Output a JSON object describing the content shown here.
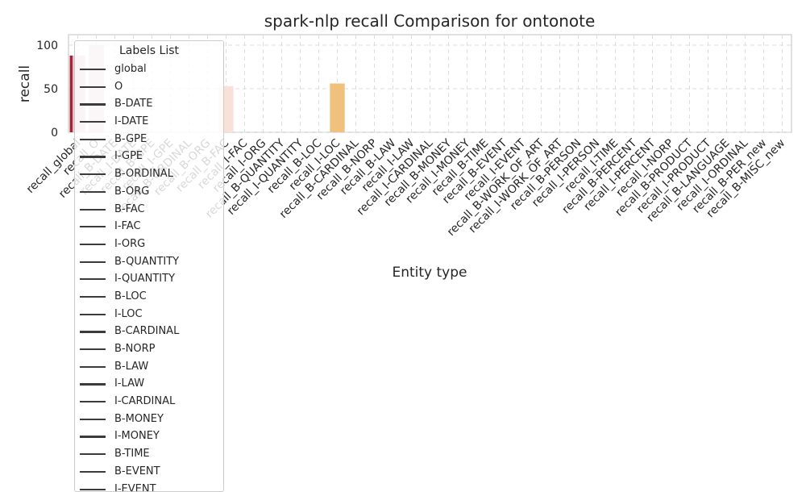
{
  "chart_data": {
    "type": "bar",
    "title": "spark-nlp recall Comparison for ontonote",
    "xlabel": "Entity type",
    "ylabel": "recall",
    "ylim": [
      0,
      112
    ],
    "yticks": [
      0,
      50,
      100
    ],
    "grid": true,
    "categories": [
      "recall_global",
      "recall_O",
      "recall_B-DATE",
      "recall_I-DATE",
      "recall_B-GPE",
      "recall_I-GPE",
      "recall_B-ORDINAL",
      "recall_B-ORG",
      "recall_B-FAC",
      "recall_I-FAC",
      "recall_I-ORG",
      "recall_B-QUANTITY",
      "recall_I-QUANTITY",
      "recall_B-LOC",
      "recall_I-LOC",
      "recall_B-CARDINAL",
      "recall_B-NORP",
      "recall_B-LAW",
      "recall_I-LAW",
      "recall_I-CARDINAL",
      "recall_B-MONEY",
      "recall_I-MONEY",
      "recall_B-TIME",
      "recall_B-EVENT",
      "recall_I-EVENT",
      "recall_B-WORK_OF_ART",
      "recall_I-WORK_OF_ART",
      "recall_B-PERSON",
      "recall_I-PERSON",
      "recall_I-TIME",
      "recall_B-PERCENT",
      "recall_I-PERCENT",
      "recall_I-NORP",
      "recall_B-PRODUCT",
      "recall_I-PRODUCT",
      "recall_B-LANGUAGE",
      "recall_I-ORDINAL",
      "recall_B-PER_new",
      "recall_B-MISC_new"
    ],
    "values": [
      88,
      100,
      0,
      0,
      0,
      0,
      0,
      0,
      53,
      0,
      0,
      0,
      0,
      0,
      56,
      0,
      0,
      0,
      0,
      0,
      0,
      0,
      0,
      0,
      0,
      0,
      0,
      0,
      0,
      0,
      0,
      0,
      0,
      0,
      0,
      0,
      0,
      0,
      0
    ],
    "bar_colors": [
      "#e6c3cb",
      "#e9cbd2",
      "#f0d4d6",
      "#f3dcdc",
      "#f5e0dd",
      "#f7e4df",
      "#f8e7e1",
      "#f9e8e2",
      "#f8e1d9",
      "#f6dccc",
      "#f4d4bd",
      "#f2ccaa",
      "#f0c895",
      "#f0c282",
      "#f0c17d",
      "#f0c078",
      "#eebd72",
      "#edba6c",
      "#ecb767",
      "#ebb462",
      "#eab15d",
      "#e9ae58",
      "#e8ab53",
      "#e7a84e",
      "#e6a549",
      "#e5a244",
      "#e49f3f",
      "#e39c3a",
      "#e29935",
      "#e19630",
      "#e0932b",
      "#df9026",
      "#de8d21",
      "#dd8a1c",
      "#dc8717",
      "#db8412",
      "#da810d",
      "#d97e08",
      "#d87b03"
    ],
    "global_line": {
      "value": 88,
      "color": "#a2263a"
    },
    "legend": {
      "title": "Labels List",
      "items": [
        "global",
        "O",
        "B-DATE",
        "I-DATE",
        "B-GPE",
        "I-GPE",
        "B-ORDINAL",
        "B-ORG",
        "B-FAC",
        "I-FAC",
        "I-ORG",
        "B-QUANTITY",
        "I-QUANTITY",
        "B-LOC",
        "I-LOC",
        "B-CARDINAL",
        "B-NORP",
        "B-LAW",
        "I-LAW",
        "I-CARDINAL",
        "B-MONEY",
        "I-MONEY",
        "B-TIME",
        "B-EVENT",
        "I-EVENT"
      ]
    }
  }
}
